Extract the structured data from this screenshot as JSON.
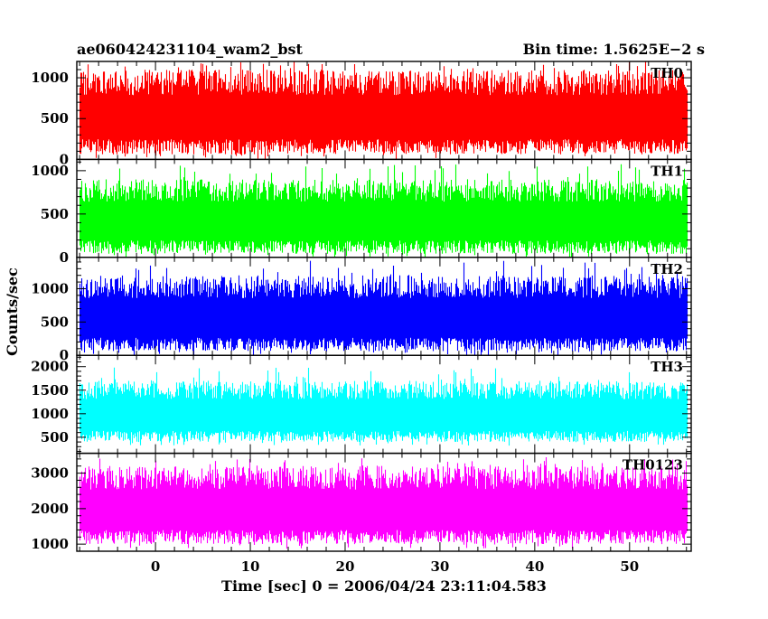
{
  "chart_data": {
    "type": "line",
    "title": "ae060424231104_wam2_bst",
    "bin_time": "Bin time: 1.5625E−2 s",
    "xlabel": "Time [sec] 0 = 2006/04/24 23:11:04.583",
    "ylabel": "Counts/sec",
    "xlim": [
      -8.3,
      56.5
    ],
    "x_data_range": [
      -8.0,
      56.0
    ],
    "x_ticks": [
      0,
      10,
      20,
      30,
      40,
      50
    ],
    "x_tick_labels": [
      "0",
      "10",
      "20",
      "30",
      "40",
      "50"
    ],
    "x_minor_step": 2,
    "grid": false,
    "panels": [
      {
        "label": "TH0",
        "color": "#ff0000",
        "ylim": [
          0,
          1200
        ],
        "y_ticks": [
          0,
          500,
          1000
        ],
        "y_tick_labels": [
          "0",
          "500",
          "1000"
        ],
        "y_minor_step": 100,
        "typical_low": 60,
        "typical_high": 1100,
        "peak": 1200
      },
      {
        "label": "TH1",
        "color": "#00ff00",
        "ylim": [
          0,
          1130
        ],
        "y_ticks": [
          0,
          500,
          1000
        ],
        "y_tick_labels": [
          "0",
          "500",
          "1000"
        ],
        "y_minor_step": 100,
        "typical_low": 40,
        "typical_high": 900,
        "peak": 1080
      },
      {
        "label": "TH2",
        "color": "#0000ff",
        "ylim": [
          0,
          1470
        ],
        "y_ticks": [
          0,
          500,
          1000
        ],
        "y_tick_labels": [
          "0",
          "500",
          "1000"
        ],
        "y_minor_step": 100,
        "typical_low": 60,
        "typical_high": 1200,
        "peak": 1420
      },
      {
        "label": "TH3",
        "color": "#00ffff",
        "ylim": [
          160,
          2240
        ],
        "y_ticks": [
          500,
          1000,
          1500,
          2000
        ],
        "y_tick_labels": [
          "500",
          "1000",
          "1500",
          "2000"
        ],
        "y_minor_step": 100,
        "typical_low": 400,
        "typical_high": 1700,
        "peak": 2000
      },
      {
        "label": "TH0123",
        "color": "#ff00ff",
        "ylim": [
          800,
          3560
        ],
        "y_ticks": [
          1000,
          2000,
          3000
        ],
        "y_tick_labels": [
          "1000",
          "2000",
          "3000"
        ],
        "y_minor_step": 200,
        "typical_low": 1000,
        "typical_high": 3200,
        "peak": 3450
      }
    ]
  }
}
